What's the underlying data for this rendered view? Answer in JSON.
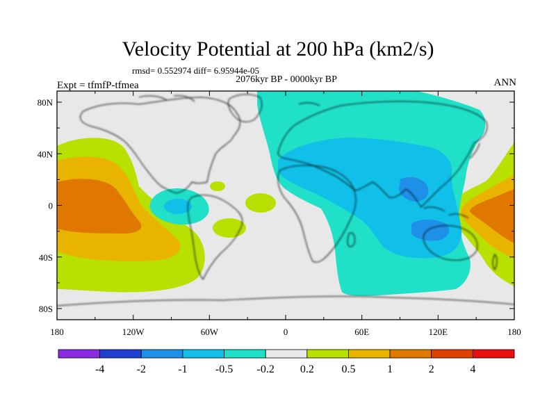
{
  "title": "Velocity Potential at 200 hPa (km2/s)",
  "stats_line": "rmsd= 0.552974 diff= 6.95944e-05",
  "period_line": "2076kyr BP - 0000kyr BP",
  "expt_line": "Expt = tfmfP-tfmea",
  "season": "ANN",
  "lat_labels": [
    "80N",
    "40N",
    "0",
    "40S",
    "80S"
  ],
  "lon_labels": [
    "180",
    "120W",
    "60W",
    "0",
    "60E",
    "120E",
    "180"
  ],
  "colorbar": {
    "labels": [
      "-4",
      "-2",
      "-1",
      "-0.5",
      "-0.2",
      "0.2",
      "0.5",
      "1",
      "2",
      "4"
    ],
    "colors": [
      "#8a2be2",
      "#1f3fd0",
      "#1e90e8",
      "#10c0e8",
      "#20e0c8",
      "#e8e8e8",
      "#b8e000",
      "#e8b400",
      "#e07800",
      "#e04000",
      "#e81010"
    ]
  },
  "colors": {
    "land_outline": "#000000",
    "ocean_neutral": "#e8e8e8"
  }
}
